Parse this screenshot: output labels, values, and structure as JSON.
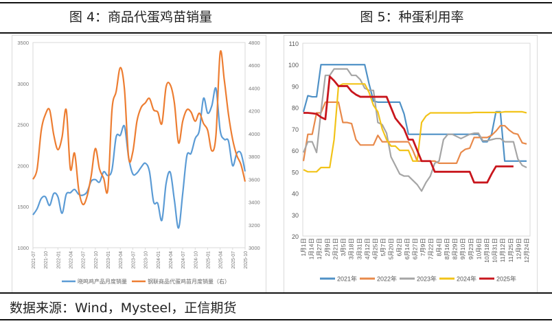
{
  "titles": {
    "left": "图 4：商品代蛋鸡苗销量",
    "right": "图 5：种蛋利用率"
  },
  "source": "数据来源：Wind，Mysteel，正信期货",
  "chart_data": [
    {
      "type": "line",
      "title": "图 4：商品代蛋鸡苗销量",
      "x_tick_labels": [
        "2021-07",
        "2021-10",
        "2022-01",
        "2022-04",
        "2022-07",
        "2022-10",
        "2023-01",
        "2023-04",
        "2023-07",
        "2023-10",
        "2024-01",
        "2024-04",
        "2024-07",
        "2024-10",
        "2025-01",
        "2025-04",
        "2025-07",
        "2025-10"
      ],
      "x_range": [
        "2021-07",
        "2025-10"
      ],
      "ylim_left": [
        1000,
        3500
      ],
      "yticks_left": [
        "1000",
        "1500",
        "2000",
        "2500",
        "3000",
        "3500"
      ],
      "ylim_right": [
        3000,
        4800
      ],
      "yticks_right": [
        "3000",
        "3200",
        "3400",
        "3600",
        "3800",
        "4000",
        "4200",
        "4400",
        "4600",
        "4800"
      ],
      "legend_position": "bottom",
      "series": [
        {
          "name": "晓鸣鸡产品月度销量",
          "axis": "left",
          "color": "#5b9bd5",
          "values": [
            1400,
            1475,
            1600,
            1620,
            1515,
            1660,
            1620,
            1420,
            1650,
            1670,
            1710,
            1650,
            1640,
            1680,
            1810,
            1830,
            1800,
            1925,
            1880,
            1950,
            2350,
            2370,
            2480,
            2100,
            1900,
            1910,
            1980,
            2030,
            1930,
            1560,
            1540,
            1335,
            1780,
            1920,
            1580,
            1240,
            1660,
            2120,
            2150,
            2330,
            2430,
            2820,
            2640,
            2730,
            2940,
            2430,
            2320,
            2300,
            2000,
            2150,
            2150,
            1930
          ]
        },
        {
          "name": "钢联商品代蛋鸡苗月度销量（右）",
          "axis": "right",
          "color": "#ed7d31",
          "values": [
            3600,
            3690,
            4030,
            4170,
            4210,
            3990,
            3860,
            3970,
            4210,
            3690,
            3830,
            3510,
            3380,
            3450,
            3630,
            3870,
            3690,
            3610,
            3510,
            4210,
            4370,
            4580,
            4390,
            3790,
            3840,
            4110,
            4230,
            4270,
            4310,
            4210,
            4190,
            4090,
            4410,
            4430,
            4270,
            3920,
            4110,
            4210,
            4190,
            4110,
            4180,
            4090,
            4030,
            3850,
            3990,
            4710,
            4470,
            4170,
            3950,
            3810,
            3730,
            3580
          ]
        }
      ]
    },
    {
      "type": "line",
      "title": "图 5：种蛋利用率",
      "x_tick_labels": [
        "1月1日",
        "1月14日",
        "1月27日",
        "2月9日",
        "2月21日",
        "3月5日",
        "3月18日",
        "3月31日",
        "4月12日",
        "4月25日",
        "5月7日",
        "5月20日",
        "6月2日",
        "6月14日",
        "6月27日",
        "7月9日",
        "7月22日",
        "8月4日",
        "8月16日",
        "8月29日",
        "9月10日",
        "9月23日",
        "10月6日",
        "10月18日",
        "10月31日",
        "11月12日",
        "11月25日",
        "12月9日",
        "12月24日"
      ],
      "x_unit": "week of year (0-51)",
      "ylim": [
        20,
        110
      ],
      "yticks": [
        "20",
        "30",
        "40",
        "50",
        "60",
        "70",
        "80",
        "90",
        "100",
        "110"
      ],
      "legend_position": "bottom",
      "series": [
        {
          "name": "2021年",
          "color": "#4f91c6",
          "values": [
            78,
            85.5,
            85,
            85,
            100,
            100,
            100,
            100,
            100,
            100,
            100,
            100,
            100,
            100,
            100,
            91,
            83,
            82.5,
            82.5,
            82.5,
            82.5,
            82.5,
            82.5,
            77,
            67.5,
            67.5,
            67.5,
            67.5,
            67.5,
            67.5,
            67.5,
            67.5,
            67.5,
            67.5,
            67.5,
            67.5,
            67.5,
            67.5,
            67.5,
            67.5,
            67.5,
            64,
            64,
            67.5,
            78,
            78,
            55,
            55,
            55,
            55,
            55,
            55
          ]
        },
        {
          "name": "2022年",
          "color": "#e8894a",
          "values": [
            55,
            67.5,
            67.5,
            77.5,
            77.5,
            82.5,
            82.5,
            82.5,
            82.5,
            73,
            73,
            72.5,
            65,
            62.5,
            62.5,
            62.5,
            62.5,
            67,
            64,
            64,
            64,
            64,
            64,
            64,
            64,
            60,
            55,
            55,
            55,
            55,
            55,
            54,
            54,
            54,
            54,
            54,
            59,
            60.5,
            61,
            66,
            66,
            66,
            66,
            67,
            69,
            71.5,
            71.5,
            69.5,
            68,
            67.5,
            63.5,
            63
          ]
        },
        {
          "name": "2023年",
          "color": "#a5a5a5",
          "values": [
            59,
            64,
            64,
            59,
            78,
            95,
            95,
            98,
            98,
            98,
            98,
            95,
            95,
            93,
            89,
            88,
            88,
            73,
            72,
            68,
            57,
            53,
            49,
            48,
            48,
            46,
            44,
            41,
            45,
            48,
            54,
            55,
            65,
            67.5,
            67.5,
            66.5,
            65.5,
            66.5,
            67.5,
            68,
            68,
            64.5,
            64.5,
            65,
            65.5,
            65.5,
            64,
            64,
            64,
            56,
            53,
            52
          ]
        },
        {
          "name": "2024年",
          "color": "#f2c318",
          "values": [
            51,
            50,
            50,
            50,
            52,
            52,
            52,
            65,
            90,
            91,
            91,
            91,
            91,
            91,
            91,
            87,
            81,
            78,
            70,
            65,
            62,
            62,
            60,
            60,
            60,
            55,
            55,
            73,
            76,
            77.5,
            77.5,
            77.5,
            77.5,
            77.5,
            77.5,
            77.5,
            77.5,
            77.5,
            77.5,
            77.7,
            77.7,
            77.7,
            77.7,
            77.7,
            77.7,
            77.7,
            78,
            78,
            78,
            78,
            78,
            77.5
          ]
        },
        {
          "name": "2025年",
          "color": "#c8161d",
          "values": [
            77.5,
            77.5,
            77.3,
            77,
            75.5,
            74.5,
            94.5,
            92.5,
            90,
            90,
            90,
            87.5,
            86,
            85,
            85,
            85,
            85,
            85,
            85,
            85,
            80,
            75,
            72.5,
            70,
            65,
            65,
            60,
            55,
            55,
            55,
            50,
            50,
            50,
            50,
            50,
            50,
            50,
            50,
            50,
            45,
            45,
            45,
            45,
            49,
            52.5,
            52.5,
            52.5,
            52.5,
            52.5
          ]
        }
      ]
    }
  ]
}
